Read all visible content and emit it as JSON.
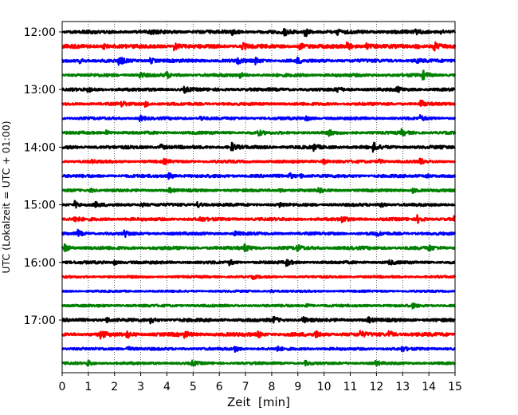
{
  "chart_data": {
    "type": "line",
    "subtype": "seismogram-helicorder",
    "xlabel": "Zeit  [min]",
    "ylabel": "UTC (Lokalzeit = UTC + 01:00)",
    "xlim": [
      0,
      15
    ],
    "x_ticks": [
      0,
      1,
      2,
      3,
      4,
      5,
      6,
      7,
      8,
      9,
      10,
      11,
      12,
      13,
      14,
      15
    ],
    "x_tick_labels": [
      "0",
      "1",
      "2",
      "3",
      "4",
      "5",
      "6",
      "7",
      "8",
      "9",
      "10",
      "11",
      "12",
      "13",
      "14",
      "15"
    ],
    "y_ticks": [
      {
        "row": 0,
        "label": "12:00"
      },
      {
        "row": 4,
        "label": "13:00"
      },
      {
        "row": 8,
        "label": "14:00"
      },
      {
        "row": 12,
        "label": "15:00"
      },
      {
        "row": 16,
        "label": "16:00"
      },
      {
        "row": 20,
        "label": "17:00"
      }
    ],
    "row_interval_min": 15,
    "grid": {
      "x": "dotted-vertical",
      "y": false
    },
    "color_cycle": [
      "#000000",
      "#ff0000",
      "#0000ff",
      "#008000"
    ],
    "traces": [
      {
        "start": "12:00",
        "color": "#000000",
        "amp": 0.18,
        "events": [
          [
            3.4,
            0.3
          ],
          [
            6.5,
            0.25
          ],
          [
            8.5,
            0.35
          ],
          [
            9.3,
            0.5
          ],
          [
            10.5,
            0.3
          ],
          [
            13.5,
            0.25
          ],
          [
            14.5,
            0.2
          ]
        ]
      },
      {
        "start": "12:15",
        "color": "#ff0000",
        "amp": 0.2,
        "events": [
          [
            1.6,
            0.25
          ],
          [
            4.3,
            0.45
          ],
          [
            6.9,
            0.35
          ],
          [
            9.1,
            0.35
          ],
          [
            10.9,
            0.55
          ],
          [
            11.6,
            0.35
          ],
          [
            13.5,
            0.3
          ],
          [
            14.2,
            0.55
          ]
        ]
      },
      {
        "start": "12:30",
        "color": "#0000ff",
        "amp": 0.17,
        "events": [
          [
            0.7,
            0.25
          ],
          [
            2.2,
            0.5
          ],
          [
            3.4,
            0.3
          ],
          [
            6.7,
            0.35
          ],
          [
            7.4,
            0.35
          ],
          [
            9.0,
            0.3
          ],
          [
            13.5,
            0.3
          ]
        ]
      },
      {
        "start": "12:45",
        "color": "#008000",
        "amp": 0.16,
        "events": [
          [
            3.0,
            0.3
          ],
          [
            4.0,
            0.35
          ],
          [
            6.8,
            0.3
          ],
          [
            13.8,
            0.45
          ]
        ]
      },
      {
        "start": "13:00",
        "color": "#000000",
        "amp": 0.16,
        "events": [
          [
            1.0,
            0.25
          ],
          [
            4.7,
            0.3
          ],
          [
            10.5,
            0.3
          ],
          [
            12.8,
            0.3
          ]
        ]
      },
      {
        "start": "13:15",
        "color": "#ff0000",
        "amp": 0.15,
        "events": [
          [
            2.3,
            0.3
          ],
          [
            3.2,
            0.35
          ],
          [
            13.7,
            0.45
          ]
        ]
      },
      {
        "start": "13:30",
        "color": "#0000ff",
        "amp": 0.14,
        "events": [
          [
            3.0,
            0.3
          ],
          [
            5.3,
            0.25
          ],
          [
            9.3,
            0.3
          ],
          [
            13.7,
            0.3
          ]
        ]
      },
      {
        "start": "13:45",
        "color": "#008000",
        "amp": 0.15,
        "events": [
          [
            1.7,
            0.25
          ],
          [
            7.5,
            0.3
          ],
          [
            10.2,
            0.3
          ],
          [
            13.0,
            0.35
          ]
        ]
      },
      {
        "start": "14:00",
        "color": "#000000",
        "amp": 0.17,
        "events": [
          [
            3.8,
            0.25
          ],
          [
            6.5,
            0.45
          ],
          [
            9.6,
            0.4
          ],
          [
            11.9,
            0.5
          ]
        ]
      },
      {
        "start": "14:15",
        "color": "#ff0000",
        "amp": 0.14,
        "events": [
          [
            1.1,
            0.2
          ],
          [
            3.9,
            0.25
          ],
          [
            10.0,
            0.3
          ],
          [
            12.1,
            0.3
          ],
          [
            13.7,
            0.3
          ]
        ]
      },
      {
        "start": "14:30",
        "color": "#0000ff",
        "amp": 0.16,
        "events": [
          [
            4.1,
            0.35
          ],
          [
            8.7,
            0.3
          ],
          [
            9.1,
            0.25
          ],
          [
            13.9,
            0.3
          ]
        ]
      },
      {
        "start": "14:45",
        "color": "#008000",
        "amp": 0.14,
        "events": [
          [
            1.1,
            0.25
          ],
          [
            4.1,
            0.3
          ],
          [
            8.3,
            0.25
          ],
          [
            9.8,
            0.35
          ],
          [
            13.4,
            0.3
          ]
        ]
      },
      {
        "start": "15:00",
        "color": "#000000",
        "amp": 0.15,
        "events": [
          [
            0.5,
            0.45
          ],
          [
            1.3,
            0.25
          ],
          [
            3.0,
            0.25
          ],
          [
            5.2,
            0.3
          ],
          [
            8.3,
            0.3
          ],
          [
            12.2,
            0.25
          ]
        ]
      },
      {
        "start": "15:15",
        "color": "#ff0000",
        "amp": 0.16,
        "events": [
          [
            0.5,
            0.35
          ],
          [
            5.3,
            0.25
          ],
          [
            10.7,
            0.35
          ],
          [
            13.6,
            0.45
          ],
          [
            15.0,
            0.3
          ]
        ]
      },
      {
        "start": "15:30",
        "color": "#0000ff",
        "amp": 0.15,
        "events": [
          [
            0.6,
            0.4
          ],
          [
            2.4,
            0.35
          ],
          [
            6.6,
            0.25
          ],
          [
            12.0,
            0.25
          ]
        ]
      },
      {
        "start": "15:45",
        "color": "#008000",
        "amp": 0.17,
        "events": [
          [
            0.1,
            0.5
          ],
          [
            7.0,
            0.4
          ],
          [
            9.0,
            0.3
          ],
          [
            14.0,
            0.3
          ]
        ]
      },
      {
        "start": "16:00",
        "color": "#000000",
        "amp": 0.15,
        "events": [
          [
            2.0,
            0.25
          ],
          [
            6.4,
            0.3
          ],
          [
            8.6,
            0.35
          ],
          [
            12.5,
            0.25
          ]
        ]
      },
      {
        "start": "16:15",
        "color": "#ff0000",
        "amp": 0.12,
        "events": [
          [
            7.3,
            0.2
          ]
        ]
      },
      {
        "start": "16:30",
        "color": "#0000ff",
        "amp": 0.1,
        "events": [
          [
            8.0,
            0.15
          ]
        ]
      },
      {
        "start": "16:45",
        "color": "#008000",
        "amp": 0.13,
        "events": [
          [
            9.3,
            0.3
          ],
          [
            13.4,
            0.25
          ]
        ]
      },
      {
        "start": "17:00",
        "color": "#000000",
        "amp": 0.17,
        "events": [
          [
            1.7,
            0.3
          ],
          [
            3.4,
            0.3
          ],
          [
            8.1,
            0.3
          ],
          [
            9.2,
            0.35
          ],
          [
            11.7,
            0.3
          ]
        ]
      },
      {
        "start": "17:15",
        "color": "#ff0000",
        "amp": 0.19,
        "events": [
          [
            1.5,
            0.45
          ],
          [
            2.5,
            0.35
          ],
          [
            4.7,
            0.3
          ],
          [
            7.5,
            0.3
          ],
          [
            9.7,
            0.35
          ],
          [
            11.4,
            0.3
          ],
          [
            12.5,
            0.4
          ]
        ]
      },
      {
        "start": "17:30",
        "color": "#0000ff",
        "amp": 0.14,
        "events": [
          [
            2.5,
            0.3
          ],
          [
            6.6,
            0.35
          ],
          [
            8.2,
            0.3
          ],
          [
            13.0,
            0.25
          ]
        ]
      },
      {
        "start": "17:45",
        "color": "#008000",
        "amp": 0.13,
        "events": [
          [
            1.0,
            0.3
          ],
          [
            5.0,
            0.25
          ],
          [
            9.3,
            0.25
          ],
          [
            12.0,
            0.25
          ]
        ]
      }
    ]
  }
}
